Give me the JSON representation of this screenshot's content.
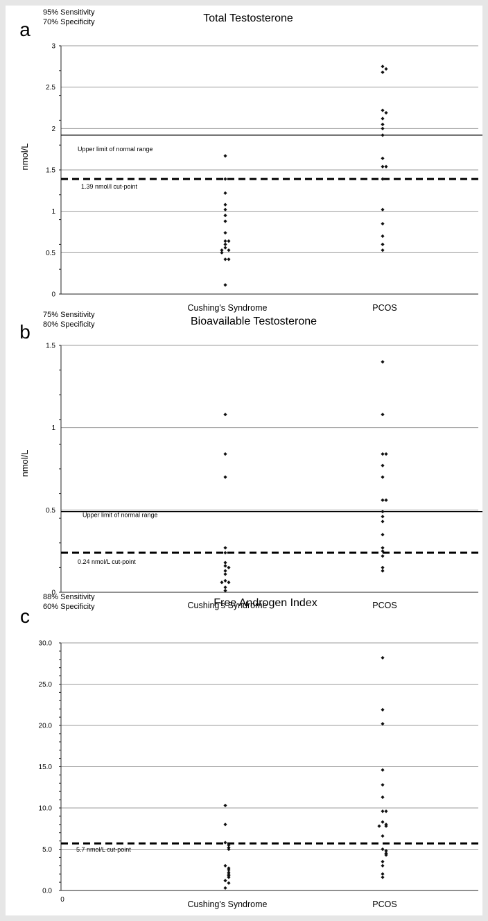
{
  "chart_data": [
    {
      "panel_letter": "a",
      "type": "scatter",
      "title": "Total Testosterone",
      "ylabel": "nmol/L",
      "annotation": [
        "95% Sensitivity",
        "70% Specificity"
      ],
      "categories": [
        "Cushing's Syndrome",
        "PCOS"
      ],
      "yticks": [
        "0",
        "0.5",
        "1",
        "1.5",
        "2",
        "2.5",
        "3"
      ],
      "ylim": [
        0,
        3
      ],
      "grid": true,
      "reference_lines": [
        {
          "value": 1.92,
          "style": "solid",
          "label": "Upper limit of normal range"
        },
        {
          "value": 1.39,
          "style": "dashed",
          "label": "1.39 nmol/l  cut-point"
        }
      ],
      "series": [
        {
          "category": "Cushing's Syndrome",
          "values": [
            1.67,
            1.39,
            1.22,
            1.08,
            1.02,
            0.95,
            0.88,
            0.74,
            0.64,
            0.64,
            0.6,
            0.56,
            0.53,
            0.53,
            0.5,
            0.42,
            0.42,
            0.11
          ]
        },
        {
          "category": "PCOS",
          "values": [
            2.75,
            2.72,
            2.68,
            2.22,
            2.19,
            2.12,
            2.05,
            2.0,
            1.92,
            1.64,
            1.54,
            1.54,
            1.39,
            1.02,
            0.85,
            0.7,
            0.6,
            0.53
          ]
        }
      ]
    },
    {
      "panel_letter": "b",
      "type": "scatter",
      "title": "Bioavailable Testosterone",
      "ylabel": "nmol/L",
      "annotation": [
        "75% Sensitivity",
        "80% Specificity"
      ],
      "categories": [
        "Cushing's Syndrome",
        "PCOS"
      ],
      "yticks": [
        "0",
        "0.5",
        "1",
        "1.5"
      ],
      "ylim": [
        0,
        1.5
      ],
      "grid": true,
      "reference_lines": [
        {
          "value": 0.49,
          "style": "solid",
          "label": "Upper limit of normal range"
        },
        {
          "value": 0.24,
          "style": "dashed",
          "label": "0.24 nmol/L cut-point"
        }
      ],
      "series": [
        {
          "category": "Cushing's Syndrome",
          "values": [
            1.08,
            0.84,
            0.7,
            0.27,
            0.24,
            0.18,
            0.16,
            0.15,
            0.13,
            0.11,
            0.07,
            0.06,
            0.06,
            0.03,
            0.01
          ]
        },
        {
          "category": "PCOS",
          "values": [
            1.4,
            1.08,
            0.84,
            0.84,
            0.77,
            0.7,
            0.56,
            0.56,
            0.49,
            0.46,
            0.43,
            0.35,
            0.27,
            0.25,
            0.22,
            0.15,
            0.13
          ]
        }
      ]
    },
    {
      "panel_letter": "c",
      "type": "scatter",
      "title": "Free Androgen Index",
      "ylabel": "",
      "annotation": [
        "88% Sensitivity",
        "60% Specificity"
      ],
      "categories": [
        "Cushing's Syndrome",
        "PCOS"
      ],
      "yticks": [
        "0.0",
        "5.0",
        "10.0",
        "15.0",
        "20.0",
        "25.0",
        "30.0"
      ],
      "x_origin_label": "0",
      "ylim": [
        0,
        30
      ],
      "grid": true,
      "reference_lines": [
        {
          "value": 5.7,
          "style": "dashed",
          "label": "5.7 nmol/L cut-point"
        }
      ],
      "series": [
        {
          "category": "Cushing's Syndrome",
          "values": [
            10.3,
            8.0,
            5.8,
            5.5,
            5.2,
            5.0,
            3.0,
            2.7,
            2.5,
            2.2,
            2.0,
            1.8,
            1.6,
            1.2,
            0.9,
            0.3
          ]
        },
        {
          "category": "PCOS",
          "values": [
            28.2,
            21.9,
            20.2,
            14.6,
            12.8,
            11.3,
            9.6,
            9.6,
            8.3,
            8.0,
            7.8,
            7.8,
            6.6,
            5.0,
            4.8,
            4.5,
            4.3,
            3.5,
            3.0,
            2.0,
            1.6
          ]
        }
      ]
    }
  ]
}
